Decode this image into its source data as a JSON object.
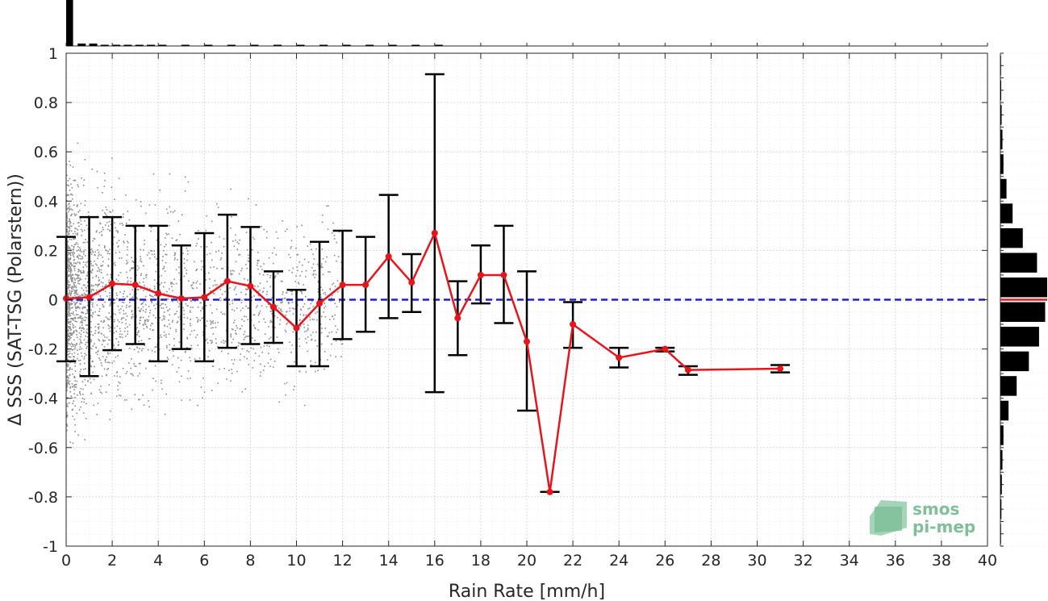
{
  "chart_data": {
    "type": "scatter",
    "title": "",
    "xlabel": "Rain Rate [mm/h]",
    "ylabel": "Δ SSS (SAT-TSG (Polarstern))",
    "xlim": [
      0,
      40
    ],
    "ylim": [
      -1,
      1
    ],
    "x_ticks": [
      0,
      2,
      4,
      6,
      8,
      10,
      12,
      14,
      16,
      18,
      20,
      22,
      24,
      26,
      28,
      30,
      32,
      34,
      36,
      38,
      40
    ],
    "y_ticks": [
      -1,
      -0.8,
      -0.6,
      -0.4,
      -0.2,
      0,
      0.2,
      0.4,
      0.6,
      0.8,
      1
    ],
    "y_tick_labels": [
      "-1",
      "-0.8",
      "-0.6",
      "-0.4",
      "-0.2",
      "0",
      "0.2",
      "0.4",
      "0.6",
      "0.8",
      "1"
    ],
    "grid": true,
    "reference_line": {
      "y": 0,
      "style": "dashed",
      "color": "#1f1fd6"
    },
    "binned_mean": {
      "color": "#e8141c",
      "x": [
        0,
        1,
        2,
        3,
        4,
        5,
        6,
        7,
        8,
        9,
        10,
        11,
        12,
        13,
        14,
        15,
        16,
        17,
        18,
        19,
        20,
        21,
        22,
        24,
        26,
        27,
        31
      ],
      "y": [
        0.005,
        0.01,
        0.065,
        0.06,
        0.025,
        0.005,
        0.01,
        0.075,
        0.055,
        -0.03,
        -0.115,
        -0.015,
        0.06,
        0.06,
        0.175,
        0.07,
        0.27,
        -0.075,
        0.1,
        0.1,
        -0.17,
        -0.78,
        -0.1,
        -0.235,
        -0.2,
        -0.285,
        -0.28
      ],
      "err_low": [
        -0.25,
        -0.31,
        -0.205,
        -0.18,
        -0.25,
        -0.2,
        -0.25,
        -0.195,
        -0.18,
        -0.175,
        -0.27,
        -0.27,
        -0.16,
        -0.13,
        -0.075,
        -0.05,
        -0.375,
        -0.225,
        -0.015,
        -0.095,
        -0.45,
        -0.78,
        -0.195,
        -0.275,
        -0.21,
        -0.305,
        -0.295
      ],
      "err_high": [
        0.255,
        0.335,
        0.335,
        0.3,
        0.3,
        0.22,
        0.27,
        0.345,
        0.295,
        0.115,
        0.04,
        0.235,
        0.28,
        0.255,
        0.425,
        0.185,
        0.915,
        0.075,
        0.22,
        0.3,
        0.115,
        -0.78,
        -0.01,
        -0.195,
        -0.195,
        -0.27,
        -0.265
      ]
    },
    "scatter_color": "#8c8c8c",
    "marginal_x_histogram": {
      "color": "#000000"
    },
    "marginal_y_histogram": {
      "color": "#000000",
      "bins_y": [
        -0.95,
        -0.85,
        -0.75,
        -0.65,
        -0.55,
        -0.45,
        -0.35,
        -0.25,
        -0.15,
        -0.05,
        0.05,
        0.15,
        0.25,
        0.35,
        0.45,
        0.55,
        0.65,
        0.75,
        0.85,
        0.95
      ],
      "counts": [
        0.3,
        0.5,
        0.7,
        1,
        1.5,
        4,
        8,
        14,
        19,
        22,
        23,
        18,
        11,
        6,
        3,
        1.5,
        1,
        0.6,
        0.4,
        0.3
      ],
      "mean_line_color": "#e8141c"
    }
  },
  "logo": {
    "line1": "smos",
    "line2": "pi-mep",
    "color": "#7fbf9a"
  }
}
